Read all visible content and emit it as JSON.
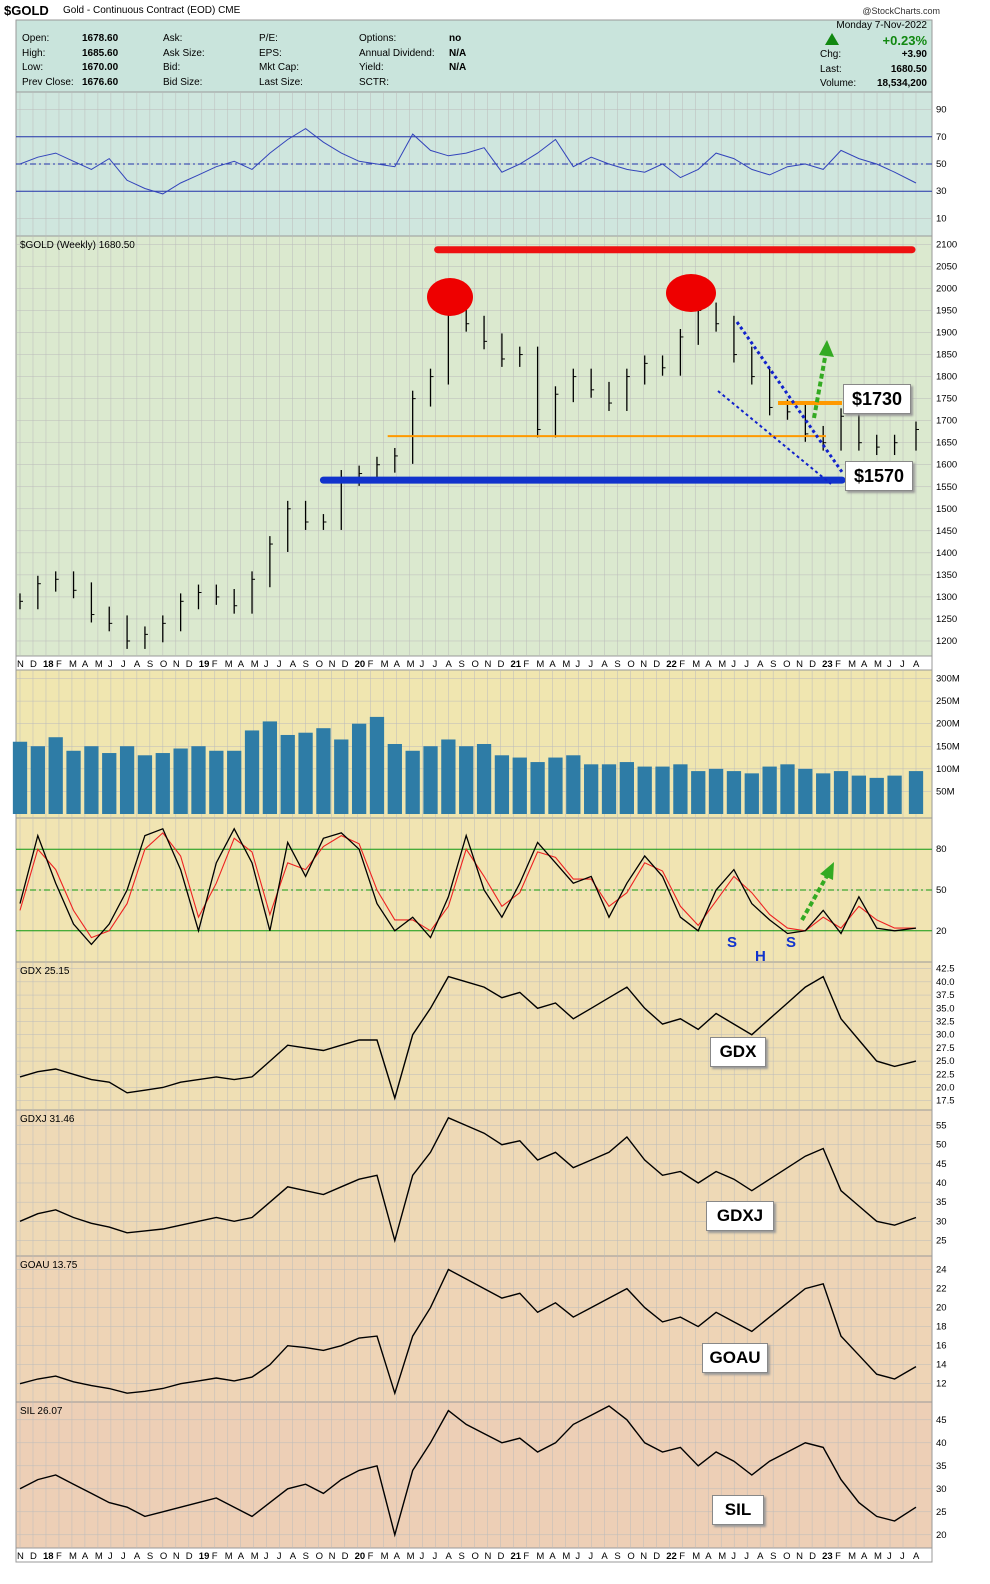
{
  "header": {
    "symbol": "$GOLD",
    "name": "Gold - Continuous Contract (EOD)",
    "exchange": "CME",
    "copyright": "@StockCharts.com"
  },
  "quote": {
    "left": [
      {
        "label": "Open:",
        "value": "1678.60"
      },
      {
        "label": "High:",
        "value": "1685.60"
      },
      {
        "label": "Low:",
        "value": "1670.00"
      },
      {
        "label": "Prev Close:",
        "value": "1676.60"
      }
    ],
    "mid": [
      "Ask:",
      "Ask Size:",
      "Bid:",
      "Bid Size:"
    ],
    "mid2": [
      "P/E:",
      "EPS:",
      "Mkt Cap:",
      "Last Size:"
    ],
    "right": [
      {
        "label": "Options:",
        "value": "no"
      },
      {
        "label": "Annual Dividend:",
        "value": "N/A"
      },
      {
        "label": "Yield:",
        "value": "N/A"
      },
      {
        "label": "SCTR:",
        "value": ""
      }
    ],
    "date": "Monday 7-Nov-2022",
    "change_pct": "+0.23%",
    "stats": [
      {
        "label": "Chg:",
        "value": "+3.90"
      },
      {
        "label": "Last:",
        "value": "1680.50"
      },
      {
        "label": "Volume:",
        "value": "18,534,200"
      }
    ]
  },
  "panels": {
    "price_label": "$GOLD (Weekly) 1680.50",
    "gdx_label": "GDX 25.15",
    "gdxj_label": "GDXJ 31.46",
    "goau_label": "GOAU 13.75",
    "sil_label": "SIL 26.07"
  },
  "annotations": {
    "level_high": "$1730",
    "level_low": "$1570",
    "gdx": "GDX",
    "gdxj": "GDXJ",
    "goau": "GOAU",
    "sil": "SIL",
    "hs": [
      "S",
      "H",
      "S"
    ]
  },
  "colors": {
    "rsi": "#3344bb",
    "price_bar": "#000000",
    "resistance": "#ee1111",
    "support": "#1133cc",
    "orange": "#ff9900",
    "arrow": "#33aa22",
    "volume": "#2e7ca6",
    "stoch_fast": "#000000",
    "stoch_slow": "#ee2222"
  },
  "chart_data": [
    {
      "type": "line",
      "name": "rsi",
      "yticks": [
        10,
        30,
        50,
        70,
        90
      ],
      "ylim": [
        0,
        100
      ],
      "levels": [
        30,
        50,
        70
      ],
      "x": [
        0,
        5,
        10,
        15,
        20,
        25,
        30,
        35,
        40,
        45,
        50,
        55,
        60,
        65,
        70,
        75,
        80,
        85,
        90,
        95,
        100,
        105,
        110,
        115,
        120,
        125,
        130,
        135,
        140,
        145,
        150,
        155,
        160,
        165,
        170,
        175,
        180,
        185,
        190,
        195,
        200,
        205,
        210,
        215,
        220,
        225,
        230,
        235,
        240,
        245,
        251
      ],
      "values": [
        50,
        55,
        58,
        52,
        46,
        54,
        38,
        32,
        28,
        36,
        42,
        48,
        52,
        46,
        58,
        68,
        76,
        66,
        58,
        52,
        50,
        48,
        72,
        60,
        56,
        58,
        62,
        44,
        50,
        58,
        68,
        48,
        55,
        50,
        46,
        44,
        50,
        40,
        46,
        58,
        54,
        46,
        42,
        48,
        50,
        46,
        60,
        54,
        50,
        44,
        36
      ]
    },
    {
      "type": "bar",
      "name": "gold-weekly-ohlc",
      "yticks": [
        1200,
        1250,
        1300,
        1350,
        1400,
        1450,
        1500,
        1550,
        1600,
        1650,
        1700,
        1750,
        1800,
        1850,
        1900,
        1950,
        2000,
        2050,
        2100
      ],
      "ylim": [
        1175,
        2110
      ],
      "x": [
        0,
        5,
        10,
        15,
        20,
        25,
        30,
        35,
        40,
        45,
        50,
        55,
        60,
        65,
        70,
        75,
        80,
        85,
        90,
        95,
        100,
        105,
        110,
        115,
        120,
        125,
        130,
        135,
        140,
        145,
        150,
        155,
        160,
        165,
        170,
        175,
        180,
        185,
        190,
        195,
        200,
        205,
        210,
        215,
        220,
        225,
        230,
        235,
        240,
        245,
        251
      ],
      "values": [
        1290,
        1330,
        1340,
        1315,
        1260,
        1240,
        1200,
        1215,
        1240,
        1290,
        1310,
        1300,
        1280,
        1340,
        1420,
        1500,
        1470,
        1470,
        1570,
        1580,
        1600,
        1620,
        1750,
        1800,
        1960,
        1920,
        1880,
        1840,
        1850,
        1680,
        1760,
        1800,
        1770,
        1740,
        1800,
        1830,
        1820,
        1890,
        1950,
        1920,
        1850,
        1800,
        1730,
        1720,
        1670,
        1650,
        1710,
        1650,
        1640,
        1650,
        1680
      ],
      "levels": [
        {
          "name": "resistance",
          "value": 2088
        },
        {
          "name": "support",
          "value": 1565
        },
        {
          "name": "neckline",
          "value": 1665
        },
        {
          "name": "target",
          "value": 1740
        }
      ]
    },
    {
      "type": "bar",
      "name": "volume",
      "yticks_labels": [
        "50M",
        "100M",
        "150M",
        "200M",
        "250M",
        "300M"
      ],
      "yticks": [
        50,
        100,
        150,
        200,
        250,
        300
      ],
      "ylim": [
        0,
        310
      ],
      "x": [
        0,
        5,
        10,
        15,
        20,
        25,
        30,
        35,
        40,
        45,
        50,
        55,
        60,
        65,
        70,
        75,
        80,
        85,
        90,
        95,
        100,
        105,
        110,
        115,
        120,
        125,
        130,
        135,
        140,
        145,
        150,
        155,
        160,
        165,
        170,
        175,
        180,
        185,
        190,
        195,
        200,
        205,
        210,
        215,
        220,
        225,
        230,
        235,
        240,
        245,
        251
      ],
      "values": [
        160,
        150,
        170,
        140,
        150,
        135,
        150,
        130,
        135,
        145,
        150,
        140,
        140,
        185,
        205,
        175,
        180,
        190,
        165,
        200,
        215,
        155,
        140,
        150,
        165,
        150,
        155,
        130,
        125,
        115,
        125,
        130,
        110,
        110,
        115,
        105,
        105,
        110,
        95,
        100,
        95,
        90,
        105,
        110,
        100,
        90,
        95,
        85,
        80,
        85,
        95
      ]
    },
    {
      "type": "line",
      "name": "stochastic",
      "yticks": [
        20,
        50,
        80
      ],
      "ylim": [
        0,
        100
      ],
      "levels": [
        20,
        50,
        80
      ],
      "x": [
        0,
        5,
        10,
        15,
        20,
        25,
        30,
        35,
        40,
        45,
        50,
        55,
        60,
        65,
        70,
        75,
        80,
        85,
        90,
        95,
        100,
        105,
        110,
        115,
        120,
        125,
        130,
        135,
        140,
        145,
        150,
        155,
        160,
        165,
        170,
        175,
        180,
        185,
        190,
        195,
        200,
        205,
        210,
        215,
        220,
        225,
        230,
        235,
        240,
        245,
        251
      ],
      "values": [
        40,
        90,
        55,
        25,
        10,
        25,
        50,
        90,
        95,
        65,
        20,
        70,
        95,
        70,
        20,
        85,
        60,
        88,
        92,
        80,
        40,
        20,
        30,
        15,
        45,
        90,
        50,
        30,
        55,
        85,
        70,
        55,
        60,
        30,
        55,
        75,
        60,
        30,
        20,
        50,
        65,
        40,
        28,
        18,
        20,
        35,
        18,
        45,
        22,
        20,
        22
      ],
      "slow": [
        35,
        80,
        65,
        35,
        15,
        20,
        40,
        80,
        92,
        75,
        30,
        55,
        88,
        78,
        32,
        70,
        65,
        82,
        90,
        84,
        50,
        28,
        28,
        20,
        38,
        80,
        60,
        38,
        48,
        78,
        74,
        58,
        58,
        38,
        48,
        70,
        64,
        38,
        24,
        42,
        60,
        48,
        32,
        22,
        20,
        30,
        22,
        38,
        28,
        22,
        22
      ]
    },
    {
      "type": "line",
      "name": "GDX",
      "yticks": [
        17.5,
        20,
        22.5,
        25,
        27.5,
        30,
        32.5,
        35,
        37.5,
        40,
        42.5
      ],
      "ylim": [
        16.5,
        43
      ],
      "x": [
        0,
        5,
        10,
        15,
        20,
        25,
        30,
        35,
        40,
        45,
        50,
        55,
        60,
        65,
        70,
        75,
        80,
        85,
        90,
        95,
        100,
        105,
        110,
        115,
        120,
        125,
        130,
        135,
        140,
        145,
        150,
        155,
        160,
        165,
        170,
        175,
        180,
        185,
        190,
        195,
        200,
        205,
        210,
        215,
        220,
        225,
        230,
        235,
        240,
        245,
        251
      ],
      "values": [
        22,
        23,
        23.5,
        22.5,
        21.5,
        21,
        19,
        19.5,
        20,
        21,
        21.5,
        22,
        21.5,
        22,
        25,
        28,
        27.5,
        27,
        28,
        29,
        29,
        18,
        30,
        35,
        41,
        40,
        39,
        37,
        38,
        35,
        36,
        33,
        35,
        37,
        39,
        35,
        32,
        33,
        31,
        34,
        32,
        30,
        33,
        36,
        39,
        41,
        33,
        29,
        25,
        24,
        25
      ]
    },
    {
      "type": "line",
      "name": "GDXJ",
      "yticks": [
        25,
        30,
        35,
        40,
        45,
        50,
        55
      ],
      "ylim": [
        22,
        58
      ],
      "x": [
        0,
        5,
        10,
        15,
        20,
        25,
        30,
        35,
        40,
        45,
        50,
        55,
        60,
        65,
        70,
        75,
        80,
        85,
        90,
        95,
        100,
        105,
        110,
        115,
        120,
        125,
        130,
        135,
        140,
        145,
        150,
        155,
        160,
        165,
        170,
        175,
        180,
        185,
        190,
        195,
        200,
        205,
        210,
        215,
        220,
        225,
        230,
        235,
        240,
        245,
        251
      ],
      "values": [
        30,
        32,
        33,
        31,
        29.5,
        28.5,
        27,
        27.5,
        28,
        29,
        30,
        31,
        30,
        31,
        35,
        39,
        38,
        37,
        39,
        41,
        42,
        25,
        42,
        48,
        57,
        55,
        53,
        50,
        51,
        46,
        48,
        44,
        46,
        48,
        52,
        46,
        42,
        43,
        40,
        43,
        41,
        38,
        41,
        44,
        47,
        49,
        38,
        34,
        30,
        29,
        31
      ]
    },
    {
      "type": "line",
      "name": "GOAU",
      "yticks": [
        12,
        14,
        16,
        18,
        20,
        22,
        24
      ],
      "ylim": [
        10.5,
        25
      ],
      "x": [
        0,
        5,
        10,
        15,
        20,
        25,
        30,
        35,
        40,
        45,
        50,
        55,
        60,
        65,
        70,
        75,
        80,
        85,
        90,
        95,
        100,
        105,
        110,
        115,
        120,
        125,
        130,
        135,
        140,
        145,
        150,
        155,
        160,
        165,
        170,
        175,
        180,
        185,
        190,
        195,
        200,
        205,
        210,
        215,
        220,
        225,
        230,
        235,
        240,
        245,
        251
      ],
      "values": [
        12,
        12.5,
        12.8,
        12.2,
        11.8,
        11.5,
        11,
        11.2,
        11.5,
        12,
        12.3,
        12.6,
        12.3,
        12.7,
        14,
        16,
        15.8,
        15.5,
        16,
        16.8,
        17,
        11,
        17,
        20,
        24,
        23,
        22,
        21,
        21.5,
        19.5,
        20.5,
        19,
        20,
        21,
        22,
        20,
        18.5,
        19,
        18,
        19.5,
        18.5,
        17.5,
        19,
        20.5,
        22,
        22.5,
        17,
        15,
        13,
        12.5,
        13.8
      ]
    },
    {
      "type": "line",
      "name": "SIL",
      "yticks": [
        20,
        25,
        30,
        35,
        40,
        45
      ],
      "ylim": [
        18,
        48
      ],
      "x": [
        0,
        5,
        10,
        15,
        20,
        25,
        30,
        35,
        40,
        45,
        50,
        55,
        60,
        65,
        70,
        75,
        80,
        85,
        90,
        95,
        100,
        105,
        110,
        115,
        120,
        125,
        130,
        135,
        140,
        145,
        150,
        155,
        160,
        165,
        170,
        175,
        180,
        185,
        190,
        195,
        200,
        205,
        210,
        215,
        220,
        225,
        230,
        235,
        240,
        245,
        251
      ],
      "values": [
        30,
        32,
        33,
        31,
        29,
        27,
        26,
        24,
        25,
        26,
        27,
        28,
        26,
        24,
        27,
        30,
        31,
        29,
        32,
        34,
        35,
        20,
        34,
        40,
        47,
        44,
        42,
        40,
        41,
        38,
        40,
        44,
        46,
        48,
        45,
        40,
        38,
        39,
        35,
        38,
        36,
        33,
        36,
        38,
        40,
        39,
        32,
        27,
        24,
        23,
        26
      ]
    }
  ],
  "x_axis": {
    "labels": [
      "N",
      "D",
      "18",
      "F",
      "M",
      "A",
      "M",
      "J",
      "J",
      "A",
      "S",
      "O",
      "N",
      "D",
      "19",
      "F",
      "M",
      "A",
      "M",
      "J",
      "J",
      "A",
      "S",
      "O",
      "N",
      "D",
      "20",
      "F",
      "M",
      "A",
      "M",
      "J",
      "J",
      "A",
      "S",
      "O",
      "N",
      "D",
      "21",
      "F",
      "M",
      "A",
      "M",
      "J",
      "J",
      "A",
      "S",
      "O",
      "N",
      "D",
      "22",
      "F",
      "M",
      "A",
      "M",
      "J",
      "J",
      "A",
      "S",
      "O",
      "N",
      "D",
      "23",
      "F",
      "M",
      "A",
      "M",
      "J",
      "J",
      "A"
    ]
  }
}
